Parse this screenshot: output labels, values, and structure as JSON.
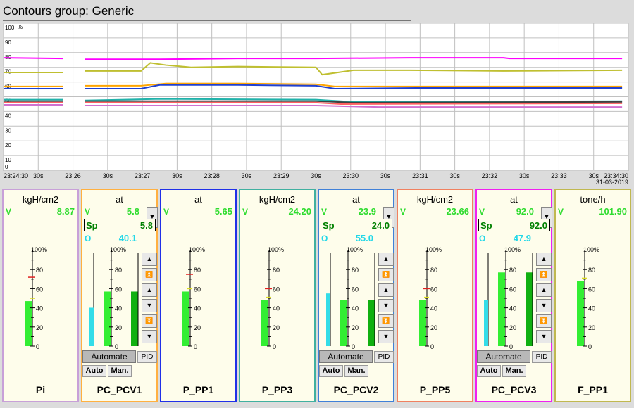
{
  "title": "Contours group: Generic",
  "trend": {
    "y_ticks": [
      "100",
      "90",
      "80",
      "70",
      "60",
      "50",
      "40",
      "30",
      "20",
      "10",
      "0"
    ],
    "y_unit": "%",
    "x_ticks": [
      "23:24:30",
      "30s",
      "23:26",
      "30s",
      "23:27",
      "30s",
      "23:28",
      "30s",
      "23:29",
      "30s",
      "23:30",
      "30s",
      "23:31",
      "30s",
      "23:32",
      "30s",
      "23:33",
      "30s",
      "23:34:30"
    ],
    "date": "31-03-2019",
    "chart_data": {
      "type": "line",
      "y_range": [
        0,
        100
      ],
      "grid": true,
      "series": [
        {
          "color": "#ff00ff",
          "points": [
            [
              0,
              76.5
            ],
            [
              0.095,
              76
            ],
            [
              0.13,
              75.5
            ],
            [
              0.25,
              75.5
            ],
            [
              0.375,
              76
            ],
            [
              0.5,
              76
            ],
            [
              0.65,
              76.5
            ],
            [
              0.8,
              76.5
            ],
            [
              0.81,
              76
            ],
            [
              0.99,
              76
            ]
          ]
        },
        {
          "color": "#bfbf30",
          "points": [
            [
              0,
              66.5
            ],
            [
              0.095,
              66.5
            ],
            [
              0.13,
              67.5
            ],
            [
              0.22,
              67.5
            ],
            [
              0.235,
              73
            ],
            [
              0.26,
              71.5
            ],
            [
              0.3,
              70
            ],
            [
              0.375,
              70.5
            ],
            [
              0.5,
              70
            ],
            [
              0.51,
              65
            ],
            [
              0.56,
              68
            ],
            [
              0.65,
              68
            ],
            [
              0.8,
              67.5
            ],
            [
              0.99,
              68
            ]
          ]
        },
        {
          "color": "#ffa500",
          "points": [
            [
              0,
              57
            ],
            [
              0.095,
              57
            ],
            [
              0.13,
              57.5
            ],
            [
              0.22,
              57.5
            ],
            [
              0.26,
              59
            ],
            [
              0.375,
              59
            ],
            [
              0.5,
              58.5
            ],
            [
              0.53,
              57
            ],
            [
              0.65,
              57
            ],
            [
              0.99,
              57
            ]
          ]
        },
        {
          "color": "#2040d0",
          "points": [
            [
              0,
              55.5
            ],
            [
              0.095,
              55.5
            ],
            [
              0.13,
              55.5
            ],
            [
              0.22,
              55.5
            ],
            [
              0.25,
              58
            ],
            [
              0.375,
              58
            ],
            [
              0.5,
              57.5
            ],
            [
              0.53,
              55.5
            ],
            [
              0.66,
              56
            ],
            [
              0.99,
              56
            ]
          ]
        },
        {
          "color": "#20b2aa",
          "points": [
            [
              0,
              48
            ],
            [
              0.095,
              48
            ],
            [
              0.13,
              47.5
            ],
            [
              0.25,
              48.5
            ],
            [
              0.5,
              48
            ],
            [
              0.56,
              46.5
            ],
            [
              0.99,
              47
            ]
          ]
        },
        {
          "color": "#404040",
          "points": [
            [
              0,
              47
            ],
            [
              0.095,
              47
            ],
            [
              0.13,
              47
            ],
            [
              0.5,
              47
            ],
            [
              0.56,
              46
            ],
            [
              0.99,
              46.5
            ]
          ]
        },
        {
          "color": "#ff6060",
          "points": [
            [
              0,
              46
            ],
            [
              0.095,
              46
            ],
            [
              0.13,
              46
            ],
            [
              0.5,
              46
            ],
            [
              0.54,
              45
            ],
            [
              0.99,
              45.5
            ]
          ]
        },
        {
          "color": "#d070d0",
          "points": [
            [
              0,
              44.5
            ],
            [
              0.095,
              44.5
            ],
            [
              0.13,
              44
            ],
            [
              0.5,
              44
            ],
            [
              0.6,
              43
            ],
            [
              0.99,
              43
            ]
          ]
        }
      ]
    }
  },
  "panels": [
    {
      "id": "pi",
      "color": "#c8a0d8",
      "unit": "kgH/cm2",
      "v": "8.87",
      "name": "Pi",
      "type": "sensor",
      "bar": 47,
      "red": 72
    },
    {
      "id": "pc_pcv1",
      "color": "#ffb040",
      "unit": "at",
      "v": "5.8",
      "sp": "5.8",
      "o": "40.1",
      "name": "PC_PCV1",
      "type": "ctrl",
      "barO": 40.1,
      "barV": 57,
      "barSp": 57
    },
    {
      "id": "p_pp1",
      "color": "#2030e8",
      "unit": "at",
      "v": "5.65",
      "name": "P_PP1",
      "type": "sensor",
      "bar": 57,
      "red": 75
    },
    {
      "id": "p_pp3",
      "color": "#40b0a0",
      "unit": "kgH/cm2",
      "v": "24.20",
      "name": "P_PP3",
      "type": "sensor",
      "bar": 48,
      "red": 60
    },
    {
      "id": "pc_pcv2",
      "color": "#4080d8",
      "unit": "at",
      "v": "23.9",
      "sp": "24.0",
      "o": "55.0",
      "name": "PC_PCV2",
      "type": "ctrl",
      "barO": 55,
      "barV": 48,
      "barSp": 48
    },
    {
      "id": "p_pp5",
      "color": "#f08060",
      "unit": "kgH/cm2",
      "v": "23.66",
      "name": "P_PP5",
      "type": "sensor",
      "bar": 48,
      "red": 60
    },
    {
      "id": "pc_pcv3",
      "color": "#f020f0",
      "unit": "at",
      "v": "92.0",
      "sp": "92.0",
      "o": "47.9",
      "name": "PC_PCV3",
      "type": "ctrl",
      "barO": 47.9,
      "barV": 77,
      "barSp": 77
    },
    {
      "id": "f_pp1",
      "color": "#c0b850",
      "unit": "tone/h",
      "v": "101.90",
      "name": "F_PP1",
      "type": "sensor",
      "bar": 68,
      "red": 0
    }
  ],
  "labels": {
    "v": "V",
    "sp": "Sp",
    "o": "O",
    "automate": "Automate",
    "pid": "PID",
    "auto": "Auto",
    "man": "Man.",
    "scale_top": "100%",
    "scale": [
      "80",
      "60",
      "40",
      "20",
      "0"
    ]
  },
  "buttons": {
    "top": "▲",
    "fast_up": "⏫",
    "up": "▲",
    "down": "▼",
    "fast_down": "⏬",
    "bottom": "▼",
    "dropdown": "▼"
  }
}
